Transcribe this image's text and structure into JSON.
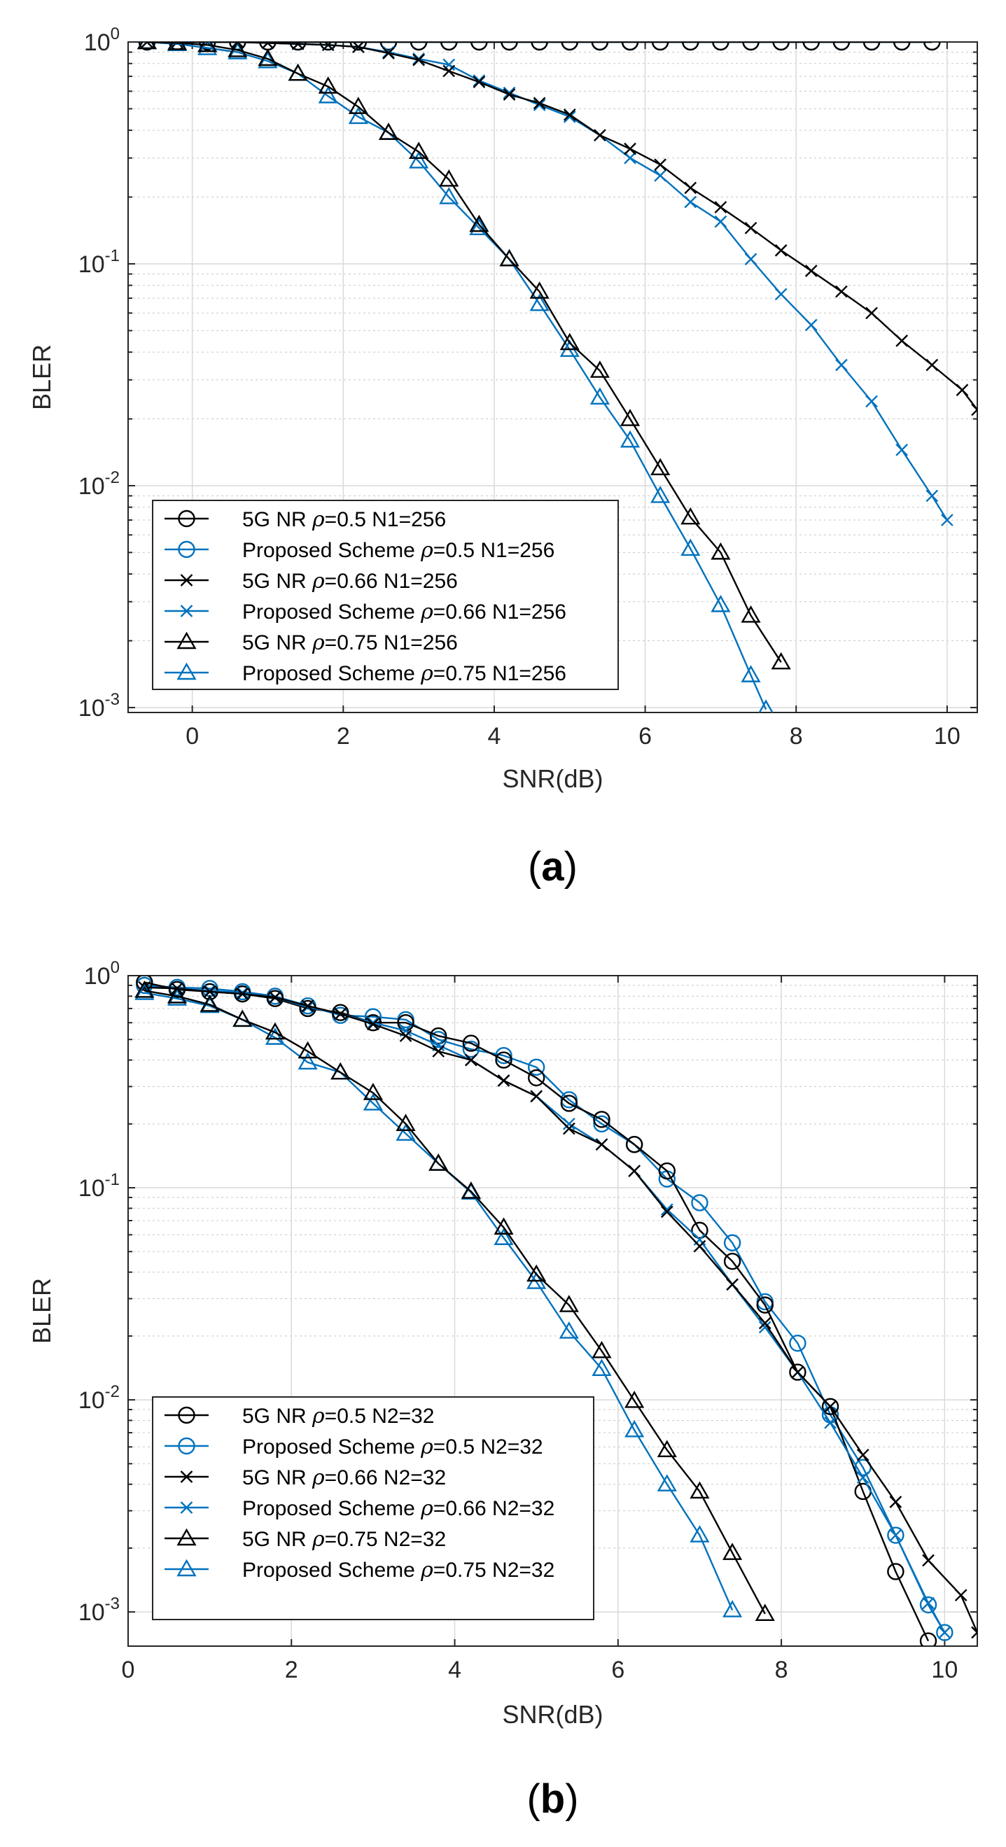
{
  "chart_data": [
    {
      "type": "line",
      "panel_label": "(a)",
      "panel_letter": "a",
      "xlabel": "SNR(dB)",
      "ylabel": "BLER",
      "yscale": "log",
      "xlim": [
        -0.85,
        10.4
      ],
      "ylim": [
        0.00095,
        1.0
      ],
      "grid": true,
      "minor_grid": true,
      "legend_position": "lower-left",
      "xticks": [
        0,
        2,
        4,
        6,
        8,
        10
      ],
      "xtick_labels": [
        "0",
        "2",
        "4",
        "6",
        "8",
        "10"
      ],
      "yticks": [
        1,
        0.1,
        0.01,
        0.001
      ],
      "ytick_labels": [
        {
          "base": "10",
          "exp": "0"
        },
        {
          "base": "10",
          "exp": "-1"
        },
        {
          "base": "10",
          "exp": "-2"
        },
        {
          "base": "10",
          "exp": "-3"
        }
      ],
      "series": [
        {
          "name": "5G NR ρ=0.5 N1=256",
          "legend_prefix": "5G NR ",
          "legend_suffix": "=0.5 N1=256",
          "color": "#000000",
          "marker": "circle",
          "x": [
            -0.6,
            -0.2,
            0.2,
            0.6,
            1.0,
            1.4,
            1.8,
            2.2,
            2.6,
            3.0,
            3.4,
            3.8,
            4.2,
            4.6,
            5.0,
            5.4,
            5.8,
            6.2,
            6.6,
            7.0,
            7.4,
            7.8,
            8.2,
            8.6,
            9.0,
            9.4,
            9.8
          ],
          "y": [
            1,
            1,
            1,
            1,
            1,
            1,
            1,
            1,
            1,
            1,
            1,
            1,
            1,
            1,
            1,
            1,
            1,
            1,
            1,
            1,
            1,
            1,
            1,
            1,
            1,
            1,
            1
          ]
        },
        {
          "name": "Proposed Scheme ρ=0.5 N1=256",
          "legend_prefix": "Proposed Scheme ",
          "legend_suffix": "=0.5 N1=256",
          "color": "#0072BD",
          "marker": "circle",
          "x": [
            -0.6,
            -0.2,
            0.2,
            0.6,
            1.0,
            1.4,
            1.8,
            2.2,
            2.6,
            3.0,
            3.4,
            3.8,
            4.2,
            4.6,
            5.0,
            5.4,
            5.8,
            6.2,
            6.6,
            7.0,
            7.4,
            7.8,
            8.2,
            8.6,
            9.0,
            9.4,
            9.8
          ],
          "y": [
            1,
            1,
            1,
            1,
            1,
            1,
            1,
            1,
            1,
            1,
            1,
            1,
            1,
            1,
            1,
            1,
            1,
            1,
            1,
            1,
            1,
            1,
            1,
            1,
            1,
            1,
            1
          ]
        },
        {
          "name": "5G NR ρ=0.66 N1=256",
          "legend_prefix": "5G NR ",
          "legend_suffix": "=0.66 N1=256",
          "color": "#000000",
          "marker": "x",
          "x": [
            -0.6,
            -0.2,
            0.2,
            0.6,
            1.0,
            1.4,
            1.8,
            2.2,
            2.6,
            3.0,
            3.4,
            3.8,
            4.2,
            4.6,
            5.0,
            5.4,
            5.8,
            6.2,
            6.6,
            7.0,
            7.4,
            7.8,
            8.2,
            8.6,
            9.0,
            9.4,
            9.8,
            10.2,
            10.4
          ],
          "y": [
            1.0,
            1.0,
            1.0,
            1.0,
            0.99,
            0.98,
            0.97,
            0.95,
            0.89,
            0.83,
            0.74,
            0.66,
            0.58,
            0.53,
            0.47,
            0.38,
            0.33,
            0.28,
            0.22,
            0.18,
            0.145,
            0.115,
            0.093,
            0.075,
            0.06,
            0.045,
            0.035,
            0.027,
            0.022
          ]
        },
        {
          "name": "Proposed Scheme ρ=0.66 N1=256",
          "legend_prefix": "Proposed Scheme ",
          "legend_suffix": "=0.66 N1=256",
          "color": "#0072BD",
          "marker": "x",
          "x": [
            -0.6,
            -0.2,
            0.2,
            0.6,
            1.0,
            1.4,
            1.8,
            2.2,
            2.6,
            3.0,
            3.4,
            3.8,
            4.2,
            4.6,
            5.0,
            5.4,
            5.8,
            6.2,
            6.6,
            7.0,
            7.4,
            7.8,
            8.2,
            8.6,
            9.0,
            9.4,
            9.8,
            10.0
          ],
          "y": [
            1.0,
            1.0,
            1.0,
            1.0,
            0.99,
            0.98,
            0.97,
            0.95,
            0.9,
            0.84,
            0.79,
            0.67,
            0.59,
            0.52,
            0.46,
            0.38,
            0.3,
            0.25,
            0.19,
            0.155,
            0.105,
            0.073,
            0.053,
            0.035,
            0.024,
            0.0145,
            0.009,
            0.007
          ]
        },
        {
          "name": "5G NR ρ=0.75 N1=256",
          "legend_prefix": "5G NR ",
          "legend_suffix": "=0.75 N1=256",
          "color": "#000000",
          "marker": "triangle",
          "x": [
            -0.6,
            -0.2,
            0.2,
            0.6,
            1.0,
            1.4,
            1.8,
            2.2,
            2.6,
            3.0,
            3.4,
            3.8,
            4.2,
            4.6,
            5.0,
            5.4,
            5.8,
            6.2,
            6.6,
            7.0,
            7.4,
            7.8
          ],
          "y": [
            1.0,
            0.99,
            0.97,
            0.92,
            0.84,
            0.72,
            0.63,
            0.51,
            0.39,
            0.32,
            0.24,
            0.15,
            0.105,
            0.075,
            0.044,
            0.033,
            0.02,
            0.012,
            0.0072,
            0.005,
            0.0026,
            0.0016
          ]
        },
        {
          "name": "Proposed Scheme ρ=0.75 N1=256",
          "legend_prefix": "Proposed Scheme ",
          "legend_suffix": "=0.75 N1=256",
          "color": "#0072BD",
          "marker": "triangle",
          "x": [
            -0.6,
            -0.2,
            0.2,
            0.6,
            1.0,
            1.4,
            1.8,
            2.2,
            2.6,
            3.0,
            3.4,
            3.8,
            4.2,
            4.6,
            5.0,
            5.4,
            5.8,
            6.2,
            6.6,
            7.0,
            7.4,
            7.6
          ],
          "y": [
            1.0,
            0.98,
            0.94,
            0.9,
            0.82,
            0.72,
            0.57,
            0.46,
            0.39,
            0.29,
            0.2,
            0.145,
            0.105,
            0.066,
            0.041,
            0.025,
            0.016,
            0.009,
            0.0052,
            0.0029,
            0.0014,
            0.00098
          ]
        }
      ]
    },
    {
      "type": "line",
      "panel_label": "(b)",
      "panel_letter": "b",
      "xlabel": "SNR(dB)",
      "ylabel": "BLER",
      "yscale": "log",
      "xlim": [
        0.0,
        10.4
      ],
      "ylim": [
        0.00069,
        1.0
      ],
      "grid": true,
      "minor_grid": true,
      "legend_position": "lower-left",
      "xticks": [
        0,
        2,
        4,
        6,
        8,
        10
      ],
      "xtick_labels": [
        "0",
        "2",
        "4",
        "6",
        "8",
        "10"
      ],
      "yticks": [
        1,
        0.1,
        0.01,
        0.001
      ],
      "ytick_labels": [
        {
          "base": "10",
          "exp": "0"
        },
        {
          "base": "10",
          "exp": "-1"
        },
        {
          "base": "10",
          "exp": "-2"
        },
        {
          "base": "10",
          "exp": "-3"
        }
      ],
      "series": [
        {
          "name": "5G NR ρ=0.5 N2=32",
          "legend_prefix": "5G NR ",
          "legend_suffix": "=0.5 N2=32",
          "color": "#000000",
          "marker": "circle",
          "x": [
            0.2,
            0.6,
            1.0,
            1.4,
            1.8,
            2.2,
            2.6,
            3.0,
            3.4,
            3.8,
            4.2,
            4.6,
            5.0,
            5.4,
            5.8,
            6.2,
            6.6,
            7.0,
            7.4,
            7.8,
            8.2,
            8.6,
            9.0,
            9.4,
            9.8
          ],
          "y": [
            0.93,
            0.86,
            0.84,
            0.82,
            0.78,
            0.7,
            0.67,
            0.6,
            0.6,
            0.52,
            0.48,
            0.4,
            0.33,
            0.25,
            0.21,
            0.16,
            0.12,
            0.063,
            0.045,
            0.028,
            0.0135,
            0.0093,
            0.0037,
            0.00155,
            0.00073
          ]
        },
        {
          "name": "Proposed Scheme ρ=0.5 N2=32",
          "legend_prefix": "Proposed Scheme ",
          "legend_suffix": "=0.5 N2=32",
          "color": "#0072BD",
          "marker": "circle",
          "x": [
            0.2,
            0.6,
            1.0,
            1.4,
            1.8,
            2.2,
            2.6,
            3.0,
            3.4,
            3.8,
            4.2,
            4.6,
            5.0,
            5.4,
            5.8,
            6.2,
            6.6,
            7.0,
            7.4,
            7.8,
            8.2,
            8.6,
            9.0,
            9.4,
            9.8,
            10.0
          ],
          "y": [
            0.9,
            0.88,
            0.87,
            0.84,
            0.8,
            0.72,
            0.65,
            0.64,
            0.62,
            0.5,
            0.45,
            0.42,
            0.37,
            0.26,
            0.2,
            0.16,
            0.11,
            0.085,
            0.055,
            0.029,
            0.0185,
            0.0085,
            0.0048,
            0.0023,
            0.00108,
            0.0008
          ]
        },
        {
          "name": "5G NR ρ=0.66 N2=32",
          "legend_prefix": "5G NR ",
          "legend_suffix": "=0.66 N2=32",
          "color": "#000000",
          "marker": "x",
          "x": [
            0.2,
            0.6,
            1.0,
            1.4,
            1.8,
            2.2,
            2.6,
            3.0,
            3.4,
            3.8,
            4.2,
            4.6,
            5.0,
            5.4,
            5.8,
            6.2,
            6.6,
            7.0,
            7.4,
            7.8,
            8.2,
            8.6,
            9.0,
            9.4,
            9.8,
            10.2,
            10.4
          ],
          "y": [
            0.88,
            0.87,
            0.84,
            0.82,
            0.79,
            0.72,
            0.66,
            0.59,
            0.52,
            0.44,
            0.4,
            0.32,
            0.27,
            0.19,
            0.16,
            0.12,
            0.077,
            0.053,
            0.035,
            0.023,
            0.0135,
            0.0093,
            0.0055,
            0.0033,
            0.00175,
            0.0012,
            0.0008
          ]
        },
        {
          "name": "Proposed Scheme ρ=0.66 N2=32",
          "legend_prefix": "Proposed Scheme ",
          "legend_suffix": "=0.66 N2=32",
          "color": "#0072BD",
          "marker": "x",
          "x": [
            0.2,
            0.6,
            1.0,
            1.4,
            1.8,
            2.2,
            2.6,
            3.0,
            3.4,
            3.8,
            4.2,
            4.6,
            5.0,
            5.4,
            5.8,
            6.2,
            6.6,
            7.0,
            7.4,
            7.8,
            8.2,
            8.6,
            9.0,
            9.4,
            9.8,
            10.0
          ],
          "y": [
            0.88,
            0.87,
            0.85,
            0.83,
            0.79,
            0.71,
            0.66,
            0.6,
            0.55,
            0.47,
            0.4,
            0.32,
            0.27,
            0.2,
            0.16,
            0.12,
            0.079,
            0.057,
            0.035,
            0.022,
            0.0135,
            0.0078,
            0.0043,
            0.0023,
            0.0011,
            0.0008
          ]
        },
        {
          "name": "5G NR ρ=0.75 N2=32",
          "legend_prefix": "5G NR ",
          "legend_suffix": "=0.75 N2=32",
          "color": "#000000",
          "marker": "triangle",
          "x": [
            0.2,
            0.6,
            1.0,
            1.4,
            1.8,
            2.2,
            2.6,
            3.0,
            3.4,
            3.8,
            4.2,
            4.6,
            5.0,
            5.4,
            5.8,
            6.2,
            6.6,
            7.0,
            7.4,
            7.8
          ],
          "y": [
            0.85,
            0.8,
            0.73,
            0.62,
            0.54,
            0.44,
            0.35,
            0.28,
            0.2,
            0.13,
            0.096,
            0.065,
            0.039,
            0.028,
            0.017,
            0.0099,
            0.0058,
            0.0037,
            0.0019,
            0.00098
          ]
        },
        {
          "name": "Proposed Scheme ρ=0.75 N2=32",
          "legend_prefix": "Proposed Scheme ",
          "legend_suffix": "=0.75 N2=32",
          "color": "#0072BD",
          "marker": "triangle",
          "x": [
            0.2,
            0.6,
            1.0,
            1.4,
            1.8,
            2.2,
            2.6,
            3.0,
            3.4,
            3.8,
            4.2,
            4.6,
            5.0,
            5.4,
            5.8,
            6.2,
            6.6,
            7.0,
            7.4
          ],
          "y": [
            0.83,
            0.78,
            0.72,
            0.62,
            0.51,
            0.39,
            0.35,
            0.25,
            0.18,
            0.13,
            0.095,
            0.058,
            0.036,
            0.021,
            0.014,
            0.0072,
            0.004,
            0.0023,
            0.00102
          ]
        }
      ]
    }
  ]
}
